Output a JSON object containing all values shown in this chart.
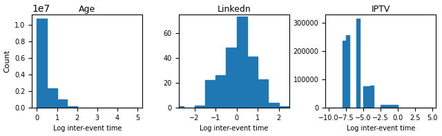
{
  "age": {
    "title": "Age",
    "xlabel": "Log inter-event time",
    "ylabel": "Count",
    "bin_edges": [
      0.0,
      0.5,
      1.0,
      1.5,
      2.0,
      2.5,
      3.0,
      3.5,
      4.0,
      4.5,
      5.0
    ],
    "counts": [
      10700000,
      2300000,
      1000000,
      200000,
      30000,
      5000,
      1000,
      500,
      200,
      100
    ],
    "xlim": [
      -0.25,
      5.25
    ],
    "xticks": [
      0,
      1,
      2,
      3,
      4,
      5
    ],
    "ylim": null
  },
  "linkedin": {
    "title": "Linkedn",
    "xlabel": "Log inter-event time",
    "ylabel": "",
    "bin_edges": [
      -3.0,
      -2.5,
      -2.0,
      -1.5,
      -1.0,
      -0.5,
      0.0,
      0.5,
      1.0,
      1.5,
      2.0,
      2.5
    ],
    "counts": [
      1,
      0,
      2,
      22,
      26,
      48,
      73,
      41,
      23,
      4,
      1
    ],
    "xlim": [
      -2.75,
      2.5
    ],
    "xticks": [
      -2,
      -1,
      0,
      1,
      2
    ],
    "ylim": [
      0,
      75
    ]
  },
  "iptv": {
    "title": "IPTV",
    "xlabel": "Log inter-event time",
    "ylabel": "",
    "bin_edges": [
      -10.0,
      -8.0,
      -7.5,
      -7.0,
      -6.0,
      -5.5,
      -5.0,
      -4.5,
      -4.0,
      -3.5,
      -2.5,
      0.0,
      2.5,
      5.0
    ],
    "counts": [
      0,
      235000,
      255000,
      0,
      313000,
      0,
      75000,
      75000,
      78000,
      0,
      10000,
      0,
      0
    ],
    "xlim": [
      -10.5,
      5.5
    ],
    "xticks": [
      -10.0,
      -7.5,
      -5.0,
      -2.5,
      0.0,
      2.5,
      5.0
    ],
    "ylim": null
  },
  "bar_color": "#1f77b4",
  "figsize": [
    6.4,
    1.97
  ],
  "dpi": 100
}
